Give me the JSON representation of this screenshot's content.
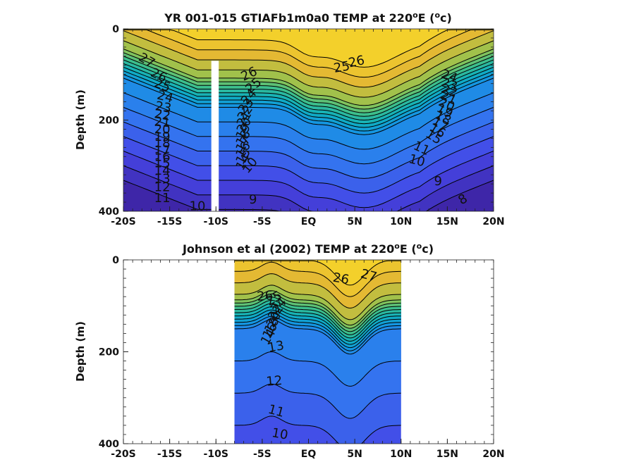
{
  "chart_data": [
    {
      "type": "contour",
      "title_pre": "YR 001-015 GTIAFb1m0a0 TEMP at 220",
      "title_sup1": "o",
      "title_mid": "E (",
      "title_sup2": "o",
      "title_post": "c)",
      "ylabel": "Depth (m)",
      "xlim": [
        -20,
        20
      ],
      "ylim": [
        0,
        400
      ],
      "y_reversed": true,
      "x_ticks": [
        -20,
        -15,
        -10,
        -5,
        0,
        5,
        10,
        15,
        20
      ],
      "x_tick_labels": [
        "-20S",
        "-15S",
        "-10S",
        "-5S",
        "EQ",
        "5N",
        "10N",
        "15N",
        "20N"
      ],
      "y_ticks": [
        0,
        200,
        400
      ],
      "y_tick_labels": [
        "0",
        "200",
        "400"
      ],
      "data_extent": [
        -20,
        20
      ],
      "masked_band": [
        -10.5,
        -9.7
      ],
      "isotherms": [
        8,
        9,
        10,
        11,
        12,
        13,
        14,
        15,
        16,
        17,
        18,
        19,
        20,
        21,
        22,
        23,
        24,
        25,
        26,
        27
      ],
      "contour_labels": [
        {
          "text": "27",
          "x": -17.5,
          "y": 70,
          "rot": 30
        },
        {
          "text": "26",
          "x": -16.2,
          "y": 103,
          "rot": 25
        },
        {
          "text": "25",
          "x": -15.8,
          "y": 125,
          "rot": 20
        },
        {
          "text": "24",
          "x": -15.5,
          "y": 150,
          "rot": 15
        },
        {
          "text": "23",
          "x": -15.7,
          "y": 173,
          "rot": 10
        },
        {
          "text": "22",
          "x": -15.8,
          "y": 190,
          "rot": 10
        },
        {
          "text": "21",
          "x": -15.8,
          "y": 206,
          "rot": 5
        },
        {
          "text": "20",
          "x": -15.8,
          "y": 222,
          "rot": 0
        },
        {
          "text": "19",
          "x": -15.8,
          "y": 238,
          "rot": 0
        },
        {
          "text": "18",
          "x": -15.8,
          "y": 252,
          "rot": 0
        },
        {
          "text": "17",
          "x": -15.8,
          "y": 268,
          "rot": 0
        },
        {
          "text": "16",
          "x": -15.8,
          "y": 282,
          "rot": 0
        },
        {
          "text": "15",
          "x": -15.8,
          "y": 296,
          "rot": 0
        },
        {
          "text": "14",
          "x": -15.8,
          "y": 312,
          "rot": 0
        },
        {
          "text": "13",
          "x": -15.8,
          "y": 330,
          "rot": 0
        },
        {
          "text": "12",
          "x": -15.8,
          "y": 348,
          "rot": 0
        },
        {
          "text": "11",
          "x": -15.8,
          "y": 372,
          "rot": 0
        },
        {
          "text": "10",
          "x": -12,
          "y": 390,
          "rot": 0
        },
        {
          "text": "26",
          "x": -6.4,
          "y": 100,
          "rot": -25
        },
        {
          "text": "25",
          "x": -5.9,
          "y": 125,
          "rot": -40
        },
        {
          "text": "24",
          "x": -6.4,
          "y": 150,
          "rot": -50
        },
        {
          "text": "23",
          "x": -6.7,
          "y": 170,
          "rot": -50
        },
        {
          "text": "22",
          "x": -6.8,
          "y": 185,
          "rot": -55
        },
        {
          "text": "21",
          "x": -6.9,
          "y": 198,
          "rot": -60
        },
        {
          "text": "20",
          "x": -6.9,
          "y": 212,
          "rot": -60
        },
        {
          "text": "19",
          "x": -7.0,
          "y": 226,
          "rot": -60
        },
        {
          "text": "18",
          "x": -7.0,
          "y": 240,
          "rot": -60
        },
        {
          "text": "17",
          "x": -7.0,
          "y": 253,
          "rot": -60
        },
        {
          "text": "16",
          "x": -7.0,
          "y": 266,
          "rot": -60
        },
        {
          "text": "15",
          "x": -7.0,
          "y": 280,
          "rot": -60
        },
        {
          "text": "14",
          "x": -7.0,
          "y": 293,
          "rot": -60
        },
        {
          "text": "10",
          "x": -6.3,
          "y": 300,
          "rot": -50
        },
        {
          "text": "9",
          "x": -6.0,
          "y": 375,
          "rot": 0
        },
        {
          "text": "26",
          "x": 5.2,
          "y": 73,
          "rot": -12
        },
        {
          "text": "25",
          "x": 3.6,
          "y": 85,
          "rot": -10
        },
        {
          "text": "24",
          "x": 15.2,
          "y": 105,
          "rot": 20
        },
        {
          "text": "23",
          "x": 15.2,
          "y": 123,
          "rot": 20
        },
        {
          "text": "22",
          "x": 15.2,
          "y": 137,
          "rot": 20
        },
        {
          "text": "21",
          "x": 15.1,
          "y": 152,
          "rot": 25
        },
        {
          "text": "20",
          "x": 14.9,
          "y": 167,
          "rot": 25
        },
        {
          "text": "19",
          "x": 14.7,
          "y": 181,
          "rot": 28
        },
        {
          "text": "18",
          "x": 14.5,
          "y": 196,
          "rot": 30
        },
        {
          "text": "17",
          "x": 14.2,
          "y": 210,
          "rot": 32
        },
        {
          "text": "16",
          "x": 13.9,
          "y": 224,
          "rot": 32
        },
        {
          "text": "15",
          "x": 13.5,
          "y": 238,
          "rot": 32
        },
        {
          "text": "11",
          "x": 12.2,
          "y": 263,
          "rot": 25
        },
        {
          "text": "10",
          "x": 11.7,
          "y": 290,
          "rot": 15
        },
        {
          "text": "9",
          "x": 14.0,
          "y": 335,
          "rot": 0
        },
        {
          "text": "8",
          "x": 16.7,
          "y": 375,
          "rot": -30
        }
      ]
    },
    {
      "type": "contour",
      "title_pre": "Johnson et al (2002) TEMP at 220",
      "title_sup1": "o",
      "title_mid": "E (",
      "title_sup2": "o",
      "title_post": "c)",
      "ylabel": "Depth (m)",
      "xlim": [
        -20,
        20
      ],
      "ylim": [
        0,
        400
      ],
      "y_reversed": true,
      "x_ticks": [
        -20,
        -15,
        -10,
        -5,
        0,
        5,
        10,
        15,
        20
      ],
      "x_tick_labels": [
        "-20S",
        "-15S",
        "-10S",
        "-5S",
        "EQ",
        "5N",
        "10N",
        "15N",
        "20N"
      ],
      "y_ticks": [
        0,
        200,
        400
      ],
      "y_tick_labels": [
        "0",
        "200",
        "400"
      ],
      "data_extent": [
        -8,
        10
      ],
      "isotherms": [
        10,
        11,
        12,
        13,
        14,
        15,
        16,
        17,
        18,
        19,
        20,
        21,
        22,
        23,
        24,
        25,
        26,
        27
      ],
      "contour_labels": [
        {
          "text": "27",
          "x": 6.5,
          "y": 35,
          "rot": 15
        },
        {
          "text": "26",
          "x": 3.5,
          "y": 42,
          "rot": 10
        },
        {
          "text": "26",
          "x": -4.7,
          "y": 80,
          "rot": -5
        },
        {
          "text": "25",
          "x": -3.7,
          "y": 85,
          "rot": -30
        },
        {
          "text": "24",
          "x": -3.2,
          "y": 100,
          "rot": -45
        },
        {
          "text": "22",
          "x": -3.5,
          "y": 115,
          "rot": -55
        },
        {
          "text": "20",
          "x": -3.7,
          "y": 130,
          "rot": -60
        },
        {
          "text": "18",
          "x": -3.9,
          "y": 143,
          "rot": -60
        },
        {
          "text": "16",
          "x": -4.1,
          "y": 155,
          "rot": -60
        },
        {
          "text": "14",
          "x": -4.3,
          "y": 168,
          "rot": -60
        },
        {
          "text": "13",
          "x": -3.5,
          "y": 190,
          "rot": -10
        },
        {
          "text": "12",
          "x": -3.7,
          "y": 265,
          "rot": -5
        },
        {
          "text": "11",
          "x": -3.5,
          "y": 330,
          "rot": 15
        },
        {
          "text": "10",
          "x": -3.1,
          "y": 380,
          "rot": 10
        }
      ]
    }
  ]
}
